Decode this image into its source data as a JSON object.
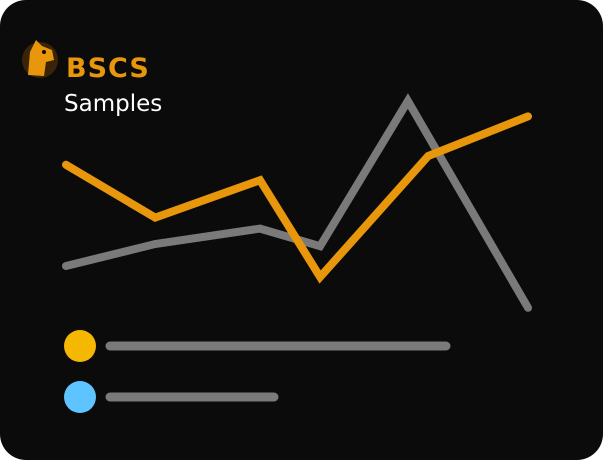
{
  "chart_data": {
    "type": "line",
    "brand": "BSCS",
    "title": "Samples",
    "xlim": [
      0,
      100
    ],
    "ylim": [
      0,
      100
    ],
    "series": [
      {
        "color": "#7a7a7a",
        "x": [
          0,
          19.3,
          42,
          55,
          74,
          100
        ],
        "values": [
          20,
          30,
          37,
          29,
          95,
          1
        ]
      },
      {
        "color": "#e8960c",
        "x": [
          0,
          19.3,
          42,
          55,
          78.4,
          100
        ],
        "values": [
          66,
          42,
          59,
          15,
          70,
          88
        ]
      }
    ]
  }
}
